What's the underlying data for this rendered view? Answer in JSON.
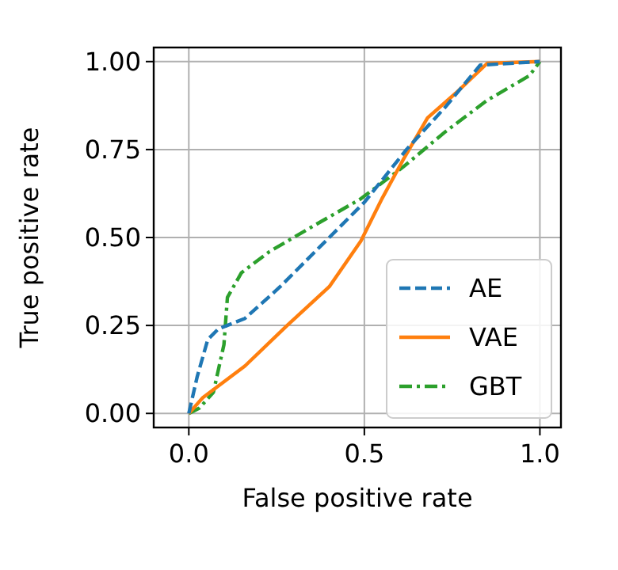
{
  "chart_data": {
    "type": "line",
    "xlabel": "False positive rate",
    "ylabel": "True positive rate",
    "xlim": [
      -0.1,
      1.06
    ],
    "ylim": [
      -0.04,
      1.04
    ],
    "xticks": [
      {
        "value": 0,
        "label": "0.0"
      },
      {
        "value": 0.5,
        "label": "0.5"
      },
      {
        "value": 1,
        "label": "1.0"
      }
    ],
    "yticks": [
      {
        "value": 0,
        "label": "0.00"
      },
      {
        "value": 0.25,
        "label": "0.25"
      },
      {
        "value": 0.5,
        "label": "0.50"
      },
      {
        "value": 0.75,
        "label": "0.75"
      },
      {
        "value": 1,
        "label": "1.00"
      }
    ],
    "grid": true,
    "legend": "bottom right",
    "series": [
      {
        "name": "AE",
        "color": "#1f77b4",
        "line_style": "dashed",
        "x": [
          0,
          0.024,
          0.054,
          0.084,
          0.16,
          0.26,
          0.38,
          0.5,
          0.62,
          0.73,
          0.83,
          1
        ],
        "values": [
          0,
          0.105,
          0.21,
          0.24,
          0.27,
          0.36,
          0.48,
          0.6,
          0.75,
          0.87,
          0.99,
          1
        ]
      },
      {
        "name": "VAE",
        "color": "#ff7f0e",
        "line_style": "solid",
        "x": [
          0,
          0.04,
          0.16,
          0.28,
          0.4,
          0.49,
          0.55,
          0.61,
          0.68,
          0.76,
          0.85,
          1
        ],
        "values": [
          0,
          0.045,
          0.135,
          0.25,
          0.36,
          0.49,
          0.61,
          0.72,
          0.84,
          0.91,
          0.995,
          1
        ]
      },
      {
        "name": "GBT",
        "color": "#2ca02c",
        "line_style": "dashdot",
        "x": [
          0,
          0.03,
          0.07,
          0.1,
          0.11,
          0.15,
          0.23,
          0.35,
          0.49,
          0.61,
          0.73,
          0.85,
          0.97,
          1
        ],
        "values": [
          0,
          0.015,
          0.06,
          0.195,
          0.33,
          0.4,
          0.46,
          0.53,
          0.61,
          0.7,
          0.8,
          0.89,
          0.96,
          1
        ]
      }
    ]
  }
}
